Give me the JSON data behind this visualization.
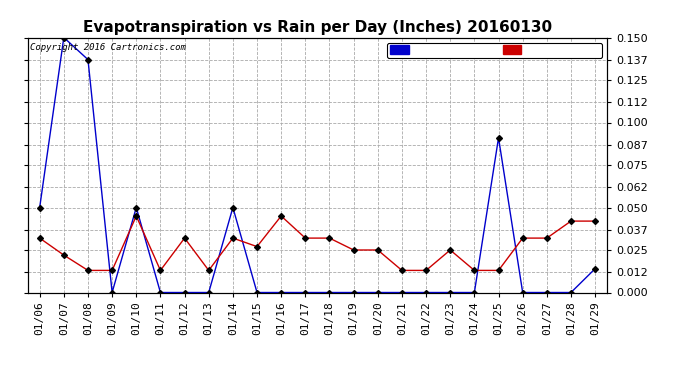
{
  "title": "Evapotranspiration vs Rain per Day (Inches) 20160130",
  "copyright": "Copyright 2016 Cartronics.com",
  "dates": [
    "01/06",
    "01/07",
    "01/08",
    "01/09",
    "01/10",
    "01/11",
    "01/12",
    "01/13",
    "01/14",
    "01/15",
    "01/16",
    "01/17",
    "01/18",
    "01/19",
    "01/20",
    "01/21",
    "01/22",
    "01/23",
    "01/24",
    "01/25",
    "01/26",
    "01/27",
    "01/28",
    "01/29"
  ],
  "rain": [
    0.05,
    0.15,
    0.137,
    0.0,
    0.05,
    0.0,
    0.0,
    0.0,
    0.05,
    0.0,
    0.0,
    0.0,
    0.0,
    0.0,
    0.0,
    0.0,
    0.0,
    0.0,
    0.0,
    0.091,
    0.0,
    0.0,
    0.0,
    0.014
  ],
  "et": [
    0.032,
    0.022,
    0.013,
    0.013,
    0.045,
    0.013,
    0.032,
    0.013,
    0.032,
    0.027,
    0.045,
    0.032,
    0.032,
    0.025,
    0.025,
    0.013,
    0.013,
    0.025,
    0.013,
    0.013,
    0.032,
    0.032,
    0.042,
    0.042
  ],
  "rain_color": "#0000cc",
  "et_color": "#cc0000",
  "background_color": "#ffffff",
  "grid_color": "#aaaaaa",
  "ylim": [
    0.0,
    0.15
  ],
  "yticks": [
    0.0,
    0.012,
    0.025,
    0.037,
    0.05,
    0.062,
    0.075,
    0.087,
    0.1,
    0.112,
    0.125,
    0.137,
    0.15
  ],
  "title_fontsize": 11,
  "tick_fontsize": 8,
  "legend_rain_bg": "#0000cc",
  "legend_et_bg": "#cc0000",
  "marker": "D",
  "marker_size": 3
}
